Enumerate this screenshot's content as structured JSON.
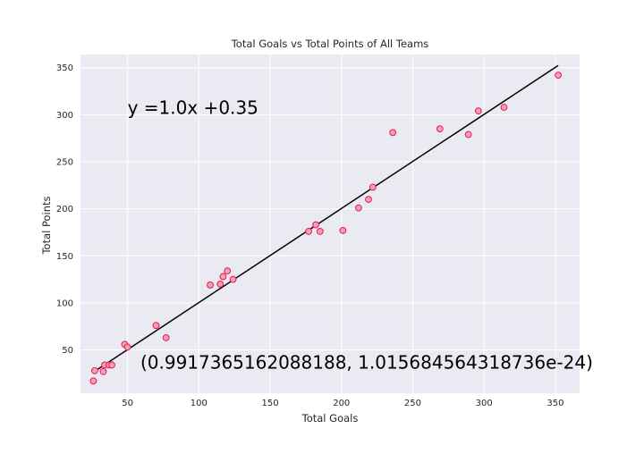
{
  "chart_data": {
    "type": "scatter",
    "title": "Total Goals vs Total Points of All Teams",
    "xlabel": "Total Goals",
    "ylabel": "Total Points",
    "xlim": [
      17,
      367
    ],
    "ylim": [
      4,
      364
    ],
    "xticks": [
      50,
      100,
      150,
      200,
      250,
      300,
      350
    ],
    "yticks": [
      50,
      100,
      150,
      200,
      250,
      300,
      350
    ],
    "grid": true,
    "points": [
      {
        "x": 26,
        "y": 17
      },
      {
        "x": 27,
        "y": 28
      },
      {
        "x": 33,
        "y": 27
      },
      {
        "x": 34,
        "y": 34
      },
      {
        "x": 37,
        "y": 34
      },
      {
        "x": 39,
        "y": 34
      },
      {
        "x": 48,
        "y": 56
      },
      {
        "x": 50,
        "y": 53
      },
      {
        "x": 70,
        "y": 76
      },
      {
        "x": 77,
        "y": 63
      },
      {
        "x": 108,
        "y": 119
      },
      {
        "x": 115,
        "y": 120
      },
      {
        "x": 117,
        "y": 128
      },
      {
        "x": 120,
        "y": 134
      },
      {
        "x": 124,
        "y": 125
      },
      {
        "x": 177,
        "y": 176
      },
      {
        "x": 182,
        "y": 183
      },
      {
        "x": 185,
        "y": 176
      },
      {
        "x": 201,
        "y": 177
      },
      {
        "x": 212,
        "y": 201
      },
      {
        "x": 219,
        "y": 210
      },
      {
        "x": 222,
        "y": 223
      },
      {
        "x": 236,
        "y": 281
      },
      {
        "x": 269,
        "y": 285
      },
      {
        "x": 289,
        "y": 279
      },
      {
        "x": 296,
        "y": 304
      },
      {
        "x": 314,
        "y": 308
      },
      {
        "x": 352,
        "y": 342
      }
    ],
    "fit_line": {
      "slope": 1.0,
      "intercept": 0.35,
      "x_start": 26,
      "x_end": 352
    },
    "annotations": [
      {
        "text": "y =1.0x +0.35",
        "x": 50,
        "y": 301
      },
      {
        "text": "(0.9917365162088188, 1.015684564318736e-24)",
        "x": 59,
        "y": 30
      }
    ],
    "colors": {
      "plot_bg": "#eaeaf2",
      "grid": "#ffffff",
      "marker_edge": "#e8194c",
      "marker_fill": "#f4a0b7",
      "fit_line": "#000000",
      "text": "#262626"
    }
  }
}
